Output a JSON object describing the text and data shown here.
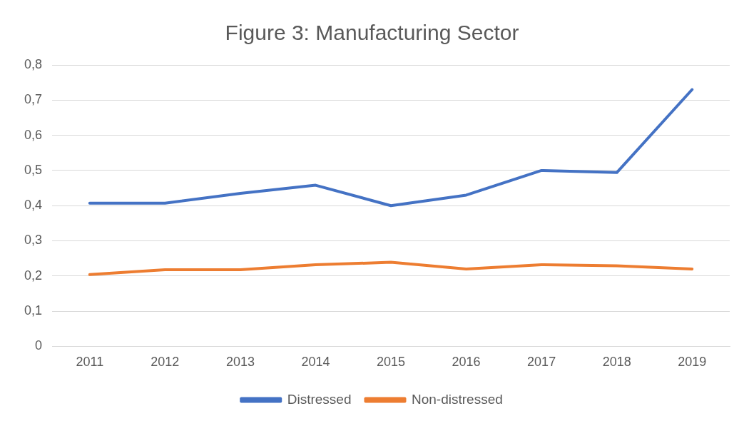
{
  "chart_data": {
    "type": "line",
    "title": "Figure 3: Manufacturing Sector",
    "categories": [
      "2011",
      "2012",
      "2013",
      "2014",
      "2015",
      "2016",
      "2017",
      "2018",
      "2019"
    ],
    "series": [
      {
        "name": "Distressed",
        "color": "#4472c4",
        "values": [
          0.407,
          0.407,
          0.435,
          0.458,
          0.4,
          0.43,
          0.5,
          0.494,
          0.73
        ]
      },
      {
        "name": "Non-distressed",
        "color": "#ed7d31",
        "values": [
          0.204,
          0.218,
          0.218,
          0.232,
          0.239,
          0.22,
          0.232,
          0.229,
          0.22
        ]
      }
    ],
    "ylim": [
      0,
      0.8
    ],
    "yticks": [
      {
        "value": 0,
        "label": "0"
      },
      {
        "value": 0.1,
        "label": "0,1"
      },
      {
        "value": 0.2,
        "label": "0,2"
      },
      {
        "value": 0.3,
        "label": "0,3"
      },
      {
        "value": 0.4,
        "label": "0,4"
      },
      {
        "value": 0.5,
        "label": "0,5"
      },
      {
        "value": 0.6,
        "label": "0,6"
      },
      {
        "value": 0.7,
        "label": "0,7"
      },
      {
        "value": 0.8,
        "label": "0,8"
      }
    ],
    "grid": "y",
    "legend": "bottom",
    "marker": "none",
    "line_style": "solid"
  }
}
